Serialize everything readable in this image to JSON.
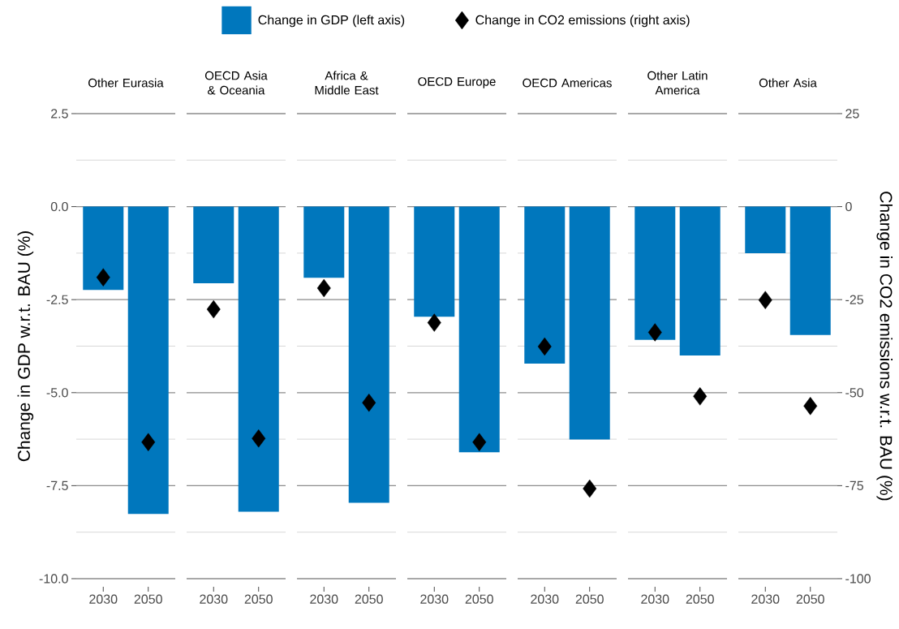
{
  "chart_data": [
    {
      "type": "bar",
      "title": "Other Eurasia",
      "categories": [
        "2030",
        "2050"
      ],
      "legend": "top",
      "grid": "y",
      "tick_labels": "xy",
      "ylabel": "Change in GDP w.r.t. BAU (%)",
      "series": [
        {
          "name": "Change in GDP (left axis)",
          "color": "#0077bd",
          "values": [
            -2.24,
            -8.26
          ]
        },
        {
          "name": "Change in CO2 emissions (right axis)",
          "type": "scatter",
          "axis": "y2",
          "marker": "diamond",
          "color": "#000000",
          "values": [
            -19.0,
            -63.3
          ]
        }
      ],
      "ylim": [
        -10,
        2.5
      ],
      "yticks": [
        {
          "value": 2.5,
          "label": "2.5"
        },
        {
          "value": 0,
          "label": "0.0"
        },
        {
          "value": -2.5,
          "label": "-2.5"
        },
        {
          "value": -5,
          "label": "-5.0"
        },
        {
          "value": -7.5,
          "label": "-7.5"
        },
        {
          "value": -10,
          "label": "-10.0"
        }
      ],
      "y2lim": [
        -100,
        25
      ]
    },
    {
      "type": "bar",
      "title": "OECD Asia & Oceania",
      "categories": [
        "2030",
        "2050"
      ],
      "grid": "y",
      "tick_labels": "x",
      "series": [
        {
          "color": "#0077bd",
          "values": [
            -2.06,
            -8.2
          ]
        },
        {
          "type": "scatter",
          "axis": "y2",
          "marker": "diamond",
          "color": "#000000",
          "values": [
            -27.6,
            -62.3
          ]
        }
      ],
      "ylim": [
        -10,
        2.5
      ],
      "y2lim": [
        -100,
        25
      ]
    },
    {
      "type": "bar",
      "title": "Africa & Middle East",
      "categories": [
        "2030",
        "2050"
      ],
      "grid": "y",
      "tick_labels": "x",
      "series": [
        {
          "color": "#0077bd",
          "values": [
            -1.91,
            -7.96
          ]
        },
        {
          "type": "scatter",
          "axis": "y2",
          "marker": "diamond",
          "color": "#000000",
          "values": [
            -21.9,
            -52.7
          ]
        }
      ],
      "ylim": [
        -10,
        2.5
      ],
      "y2lim": [
        -100,
        25
      ]
    },
    {
      "type": "bar",
      "title": "OECD Europe",
      "categories": [
        "2030",
        "2050"
      ],
      "grid": "y",
      "tick_labels": "x",
      "series": [
        {
          "color": "#0077bd",
          "values": [
            -2.96,
            -6.6
          ]
        },
        {
          "type": "scatter",
          "axis": "y2",
          "marker": "diamond",
          "color": "#000000",
          "values": [
            -31.2,
            -63.3
          ]
        }
      ],
      "ylim": [
        -10,
        2.5
      ],
      "y2lim": [
        -100,
        25
      ]
    },
    {
      "type": "bar",
      "title": "OECD Americas",
      "categories": [
        "2030",
        "2050"
      ],
      "grid": "y",
      "tick_labels": "x",
      "series": [
        {
          "color": "#0077bd",
          "values": [
            -4.22,
            -6.26
          ]
        },
        {
          "type": "scatter",
          "axis": "y2",
          "marker": "diamond",
          "color": "#000000",
          "values": [
            -37.6,
            -75.8
          ]
        }
      ],
      "ylim": [
        -10,
        2.5
      ],
      "y2lim": [
        -100,
        25
      ]
    },
    {
      "type": "bar",
      "title": "Other Latin America",
      "categories": [
        "2030",
        "2050"
      ],
      "grid": "y",
      "tick_labels": "x",
      "series": [
        {
          "color": "#0077bd",
          "values": [
            -3.58,
            -4.0
          ]
        },
        {
          "type": "scatter",
          "axis": "y2",
          "marker": "diamond",
          "color": "#000000",
          "values": [
            -33.8,
            -51.0
          ]
        }
      ],
      "ylim": [
        -10,
        2.5
      ],
      "y2lim": [
        -100,
        25
      ]
    },
    {
      "type": "bar",
      "title": "Other Asia",
      "categories": [
        "2030",
        "2050"
      ],
      "grid": "y",
      "tick_labels": "xy2",
      "y2label": "Change in CO2 emissions w.r.t. BAU (%)",
      "series": [
        {
          "color": "#0077bd",
          "values": [
            -1.25,
            -3.45
          ]
        },
        {
          "type": "scatter",
          "axis": "y2",
          "marker": "diamond",
          "color": "#000000",
          "values": [
            -25.1,
            -53.6
          ]
        }
      ],
      "ylim": [
        -10,
        2.5
      ],
      "y2lim": [
        -100,
        25
      ],
      "y2ticks": [
        25,
        0,
        -25,
        -50,
        -75,
        -100
      ]
    }
  ]
}
